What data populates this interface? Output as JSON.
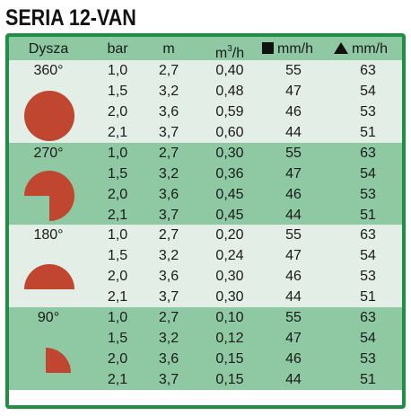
{
  "title": "SERIA 12-VAN",
  "header": {
    "nozzle": "Dysza",
    "pressure": "bar",
    "radius": "m",
    "flow_base": "m",
    "flow_sup": "3",
    "flow_rest": "/h",
    "precip_square": "mm/h",
    "precip_triangle": "mm/h"
  },
  "groups": [
    {
      "angle": "360°",
      "nozzle_shape": "full-circle",
      "rows": [
        [
          "1,0",
          "2,7",
          "0,40",
          "55",
          "63"
        ],
        [
          "1,5",
          "3,2",
          "0,48",
          "47",
          "54"
        ],
        [
          "2,0",
          "3,6",
          "0,59",
          "46",
          "53"
        ],
        [
          "2,1",
          "3,7",
          "0,60",
          "44",
          "51"
        ]
      ]
    },
    {
      "angle": "270°",
      "nozzle_shape": "three-quarter-circle",
      "rows": [
        [
          "1,0",
          "2,7",
          "0,30",
          "55",
          "63"
        ],
        [
          "1,5",
          "3,2",
          "0,36",
          "47",
          "54"
        ],
        [
          "2,0",
          "3,6",
          "0,45",
          "46",
          "53"
        ],
        [
          "2,1",
          "3,7",
          "0,45",
          "44",
          "51"
        ]
      ]
    },
    {
      "angle": "180°",
      "nozzle_shape": "half-circle",
      "rows": [
        [
          "1,0",
          "2,7",
          "0,20",
          "55",
          "63"
        ],
        [
          "1,5",
          "3,2",
          "0,24",
          "47",
          "54"
        ],
        [
          "2,0",
          "3,6",
          "0,30",
          "46",
          "53"
        ],
        [
          "2,1",
          "3,7",
          "0,30",
          "44",
          "51"
        ]
      ]
    },
    {
      "angle": "90°",
      "nozzle_shape": "quarter-circle",
      "rows": [
        [
          "1,0",
          "2,7",
          "0,10",
          "55",
          "63"
        ],
        [
          "1,5",
          "3,2",
          "0,12",
          "47",
          "54"
        ],
        [
          "2,0",
          "3,6",
          "0,15",
          "46",
          "53"
        ],
        [
          "2,1",
          "3,7",
          "0,15",
          "44",
          "51"
        ]
      ]
    }
  ],
  "colors": {
    "frame_green": "#1f8f45",
    "band_dark": "#8fc9a4",
    "band_light": "#e3eee7",
    "nozzle_red": "#c0462f"
  }
}
